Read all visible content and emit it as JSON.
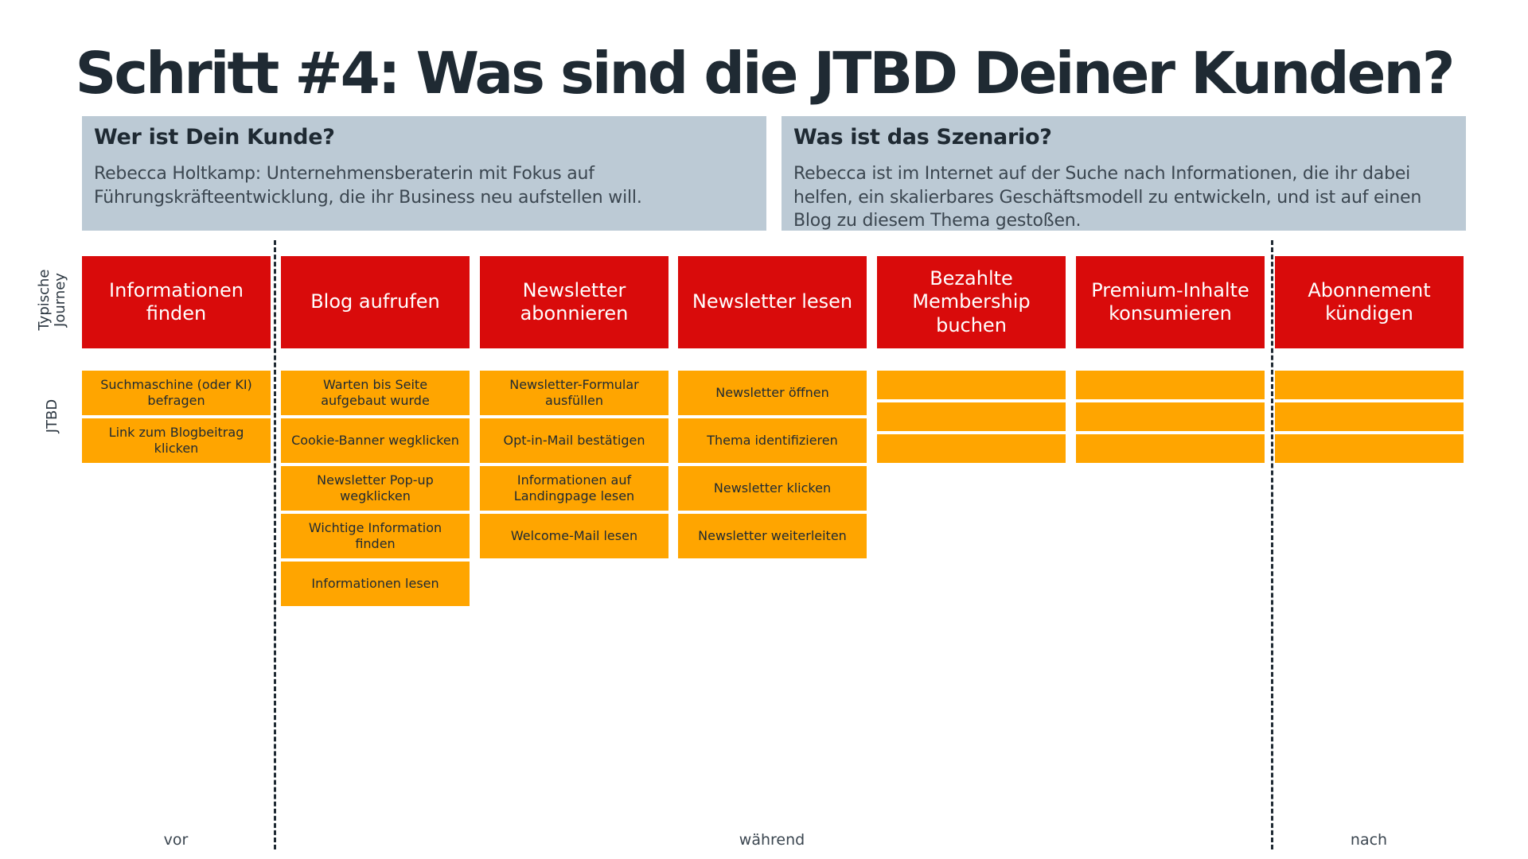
{
  "title": "Schritt #4: Was sind die JTBD Deiner Kunden?",
  "customer": {
    "heading": "Wer ist Dein Kunde?",
    "text": "Rebecca Holtkamp: Unternehmensberaterin mit Fokus auf Führungskräfteentwicklung, die ihr Business neu aufstellen will."
  },
  "scenario": {
    "heading": "Was ist das Szenario?",
    "text": "Rebecca ist im Internet auf der Suche nach Informationen, die ihr dabei helfen, ein skalierbares Geschäftsmodell zu entwickeln, und ist auf einen Blog zu diesem Thema gestoßen."
  },
  "row_labels": {
    "journey": "Typische Journey",
    "jtbd": "JTBD"
  },
  "columns": [
    {
      "stage": "Informationen finden",
      "jobs": [
        "Suchmaschine (oder KI) befragen",
        "Link zum Blogbeitrag klicken"
      ]
    },
    {
      "stage": "Blog aufrufen",
      "jobs": [
        "Warten bis Seite aufgebaut wurde",
        "Cookie-Banner wegklicken",
        "Newsletter Pop-up wegklicken",
        "Wichtige Information finden",
        "Informationen lesen"
      ]
    },
    {
      "stage": "Newsletter abonnieren",
      "jobs": [
        "Newsletter-Formular ausfüllen",
        "Opt-in-Mail bestätigen",
        "Informationen auf Landingpage lesen",
        "Welcome-Mail lesen"
      ]
    },
    {
      "stage": "Newsletter lesen",
      "jobs": [
        "Newsletter öffnen",
        "Thema identifizieren",
        "Newsletter klicken",
        "Newsletter weiterleiten"
      ]
    },
    {
      "stage": "Bezahlte Membership buchen",
      "jobs": [
        "",
        "",
        ""
      ]
    },
    {
      "stage": "Premium-Inhalte konsumieren",
      "jobs": [
        "",
        "",
        ""
      ]
    },
    {
      "stage": "Abonnement kündigen",
      "jobs": [
        "",
        "",
        ""
      ]
    }
  ],
  "phases": {
    "before": "vor",
    "during": "während",
    "after": "nach"
  },
  "colors": {
    "stage": "#d90b0b",
    "job": "#ffa500",
    "info_box": "#bccad5",
    "title": "#1f2a33"
  }
}
